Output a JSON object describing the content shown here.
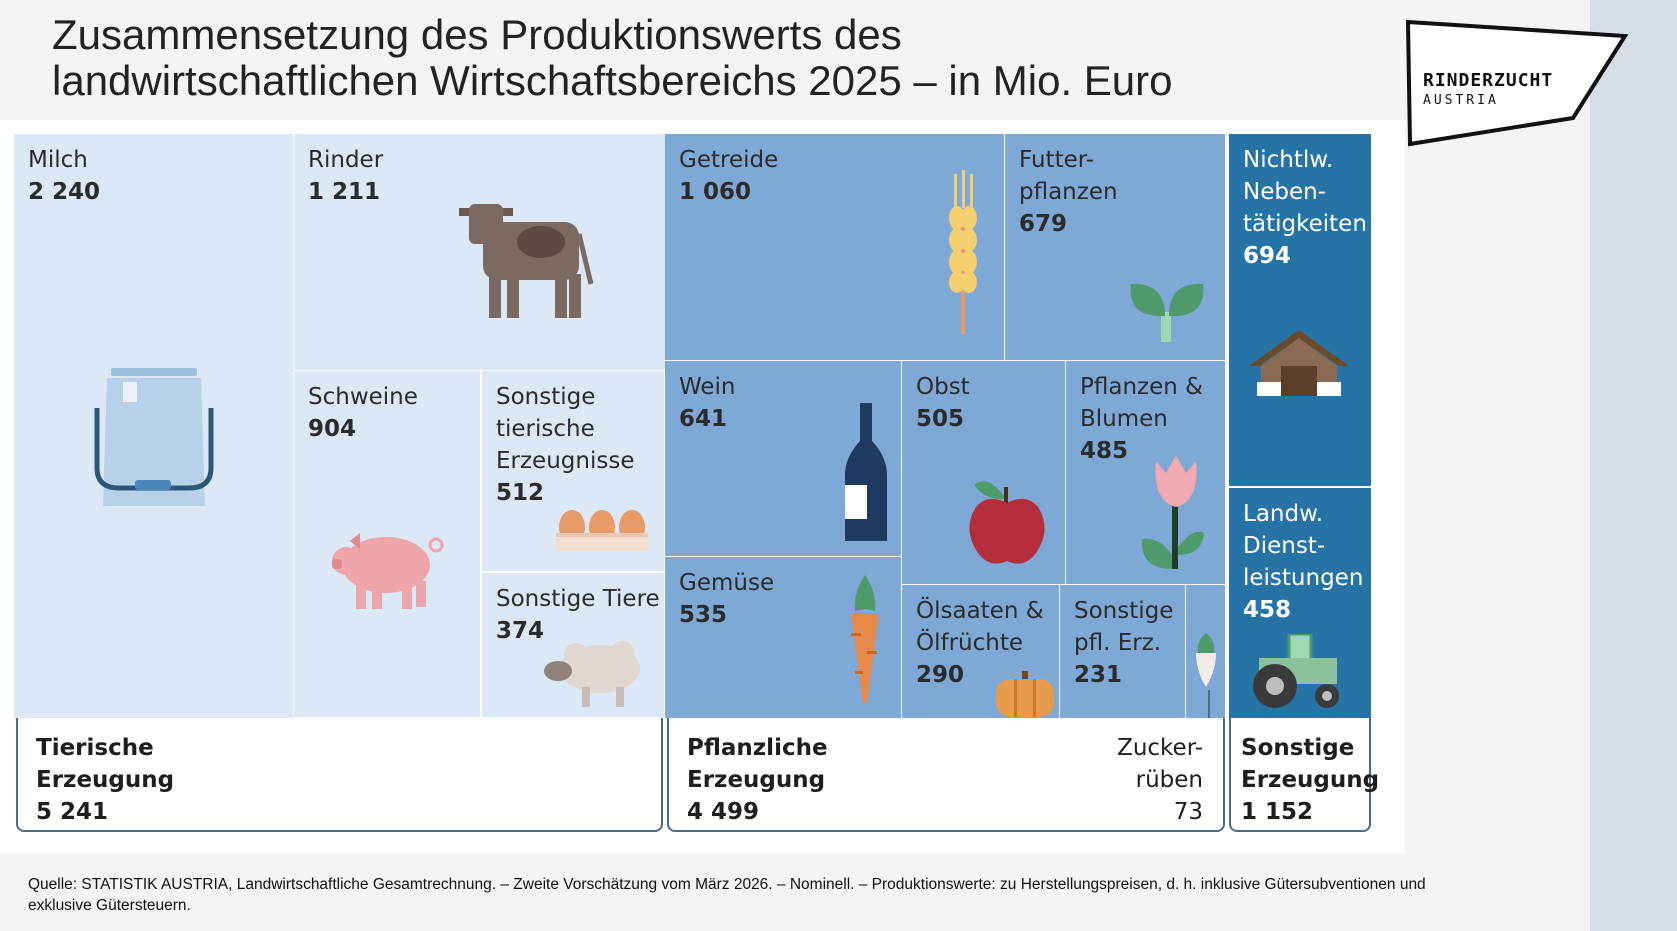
{
  "title_line1": "Zusammensetzung des Produktionswerts des",
  "title_line2": "landwirtschaftlichen Wirtschaftsbereichs 2025 – in Mio. Euro",
  "logo": {
    "line1": "RINDERZUCHT",
    "line2": "AUSTRIA"
  },
  "source": "Quelle: STATISTIK AUSTRIA, Landwirtschaftliche Gesamtrechnung. – Zweite Vorschätzung vom März 2026. – Nominell. – Produktionswerte: zu Herstellungspreisen, d. h. inklusive Gütersubventionen und exklusive Gütersteuern.",
  "colors": {
    "tierisch": "#dce8f6",
    "pflanzlich": "#7ea8d6",
    "sonstig": "#2673a6"
  },
  "chart_data": {
    "type": "treemap",
    "title": "Zusammensetzung des Produktionswerts des landwirtschaftlichen Wirtschaftsbereichs 2025 – in Mio. Euro",
    "groups": [
      {
        "label": "Tierische\nErzeugung",
        "value": "5 241",
        "items": [
          {
            "label": "Milch",
            "value": "2 240",
            "icon": "milk-can-icon"
          },
          {
            "label": "Rinder",
            "value": "1 211",
            "icon": "cow-icon"
          },
          {
            "label": "Schweine",
            "value": "904",
            "icon": "pig-icon"
          },
          {
            "label": "Sonstige\ntierische\nErzeugnisse",
            "value": "512",
            "icon": "eggs-icon"
          },
          {
            "label": "Sonstige Tiere",
            "value": "374",
            "icon": "sheep-icon"
          }
        ]
      },
      {
        "label": "Pflanzliche\nErzeugung",
        "value": "4 499",
        "items": [
          {
            "label": "Getreide",
            "value": "1 060",
            "icon": "wheat-icon"
          },
          {
            "label": "Futter-\npflanzen",
            "value": "679",
            "icon": "sprout-icon"
          },
          {
            "label": "Wein",
            "value": "641",
            "icon": "wine-bottle-icon"
          },
          {
            "label": "Obst",
            "value": "505",
            "icon": "apple-icon"
          },
          {
            "label": "Pflanzen &\nBlumen",
            "value": "485",
            "icon": "tulip-icon"
          },
          {
            "label": "Gemüse",
            "value": "535",
            "icon": "carrot-icon"
          },
          {
            "label": "Ölsaaten &\nÖlfrüchte",
            "value": "290",
            "icon": "pumpkin-icon"
          },
          {
            "label": "Sonstige\npfl. Erz.",
            "value": "231",
            "icon": null
          },
          {
            "label": "Zucker-\nrüben",
            "value": "73",
            "icon": "sugar-beet-icon"
          }
        ]
      },
      {
        "label": "Sonstige\nErzeugung",
        "value": "1 152",
        "items": [
          {
            "label": "Nichtlw.\nNeben-\ntätigkeiten",
            "value": "694",
            "icon": "house-icon"
          },
          {
            "label": "Landw.\nDienst-\nleistungen",
            "value": "458",
            "icon": "tractor-icon"
          }
        ]
      }
    ]
  }
}
